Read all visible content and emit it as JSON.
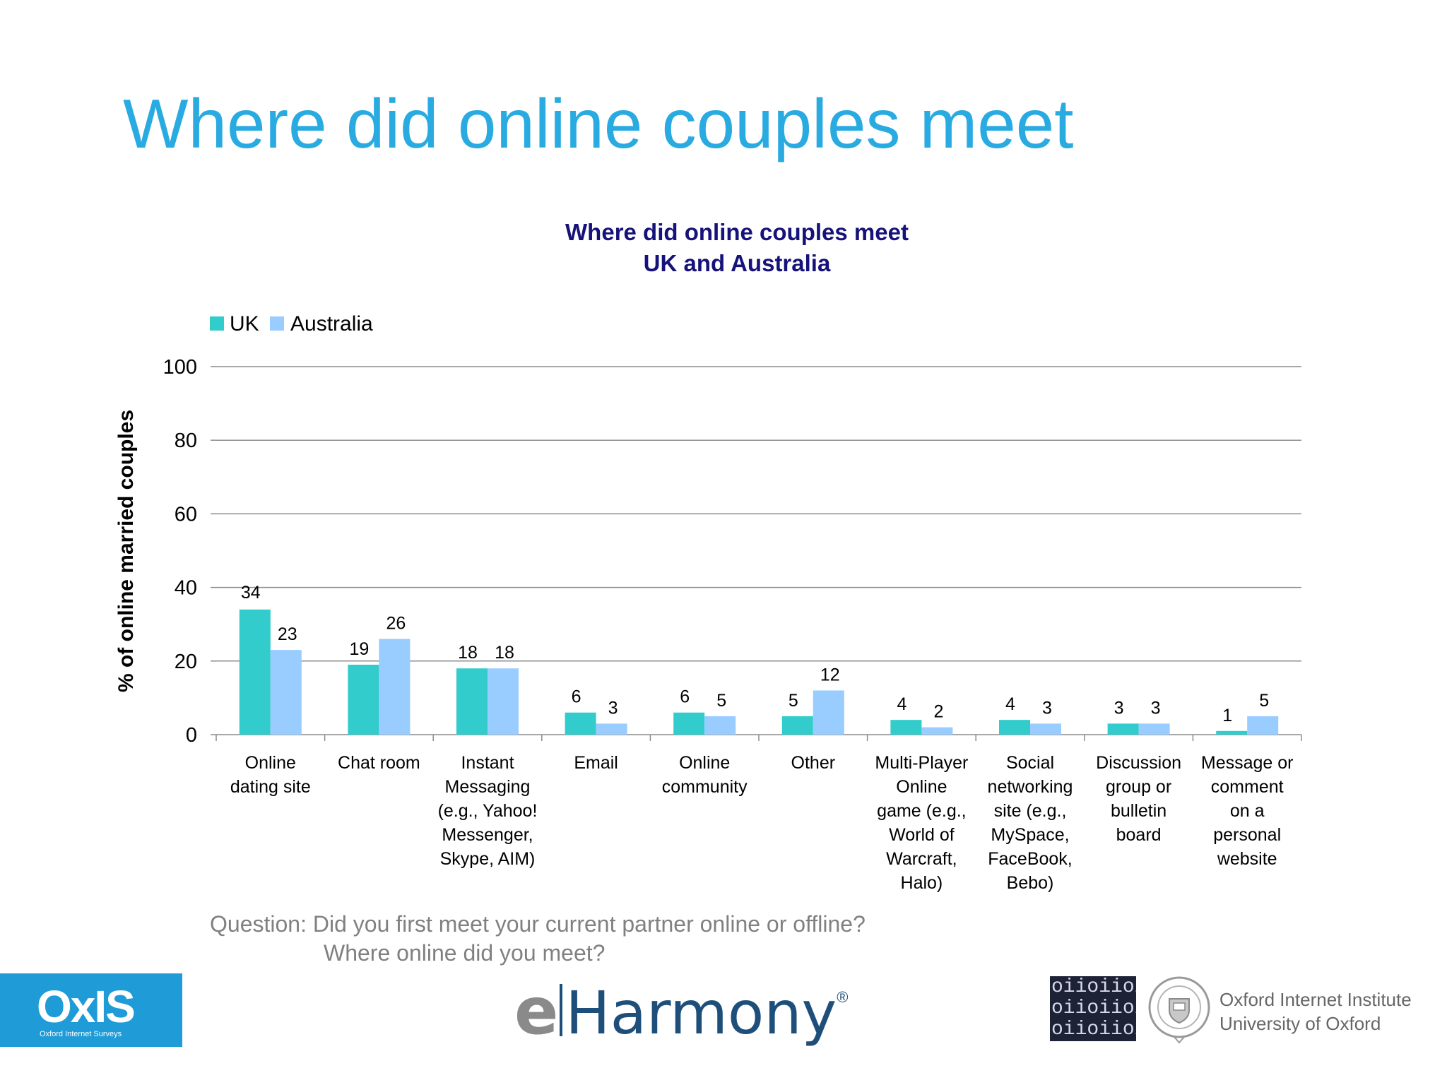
{
  "slide": {
    "title": "Where did online couples meet"
  },
  "chart_data": {
    "type": "bar",
    "title_lines": [
      "Where did online couples meet",
      "UK and Australia"
    ],
    "ylabel": "% of online married couples",
    "xlabel": "",
    "ylim": [
      0,
      100
    ],
    "yticks": [
      0,
      20,
      40,
      60,
      80,
      100
    ],
    "grid": true,
    "legend_position": "top-left",
    "categories": [
      [
        "Online",
        "dating site"
      ],
      [
        "Chat room"
      ],
      [
        "Instant",
        "Messaging",
        "(e.g., Yahoo!",
        "Messenger,",
        "Skype, AIM)"
      ],
      [
        "Email"
      ],
      [
        "Online",
        "community"
      ],
      [
        "Other"
      ],
      [
        "Multi-Player",
        "Online",
        "game (e.g.,",
        "World of",
        "Warcraft,",
        "Halo)"
      ],
      [
        "Social",
        "networking",
        "site (e.g.,",
        "MySpace,",
        "FaceBook,",
        "Bebo)"
      ],
      [
        "Discussion",
        "group or",
        "bulletin",
        "board"
      ],
      [
        "Message or",
        "comment",
        "on a",
        "personal",
        "website"
      ]
    ],
    "series": [
      {
        "name": "UK",
        "color": "#33cccc",
        "values": [
          34,
          19,
          18,
          6,
          6,
          5,
          4,
          4,
          3,
          1
        ]
      },
      {
        "name": "Australia",
        "color": "#99ccff",
        "values": [
          23,
          26,
          18,
          3,
          5,
          12,
          2,
          3,
          3,
          5
        ]
      }
    ]
  },
  "question": {
    "line1": "Question:  Did you first meet your current partner online or offline?",
    "line2": "Where online did you meet?"
  },
  "logos": {
    "oxis": {
      "text": "OxIS",
      "subtext": "Oxford Internet Surveys"
    },
    "eharmony": {
      "e": "e",
      "name": "Harmony",
      "mark": "®"
    },
    "oii_binary": [
      "oiioiioi",
      "oiioiioi",
      "oiioiioi"
    ],
    "oii": {
      "line1": "Oxford Internet Institute",
      "line2": "University of Oxford"
    }
  }
}
